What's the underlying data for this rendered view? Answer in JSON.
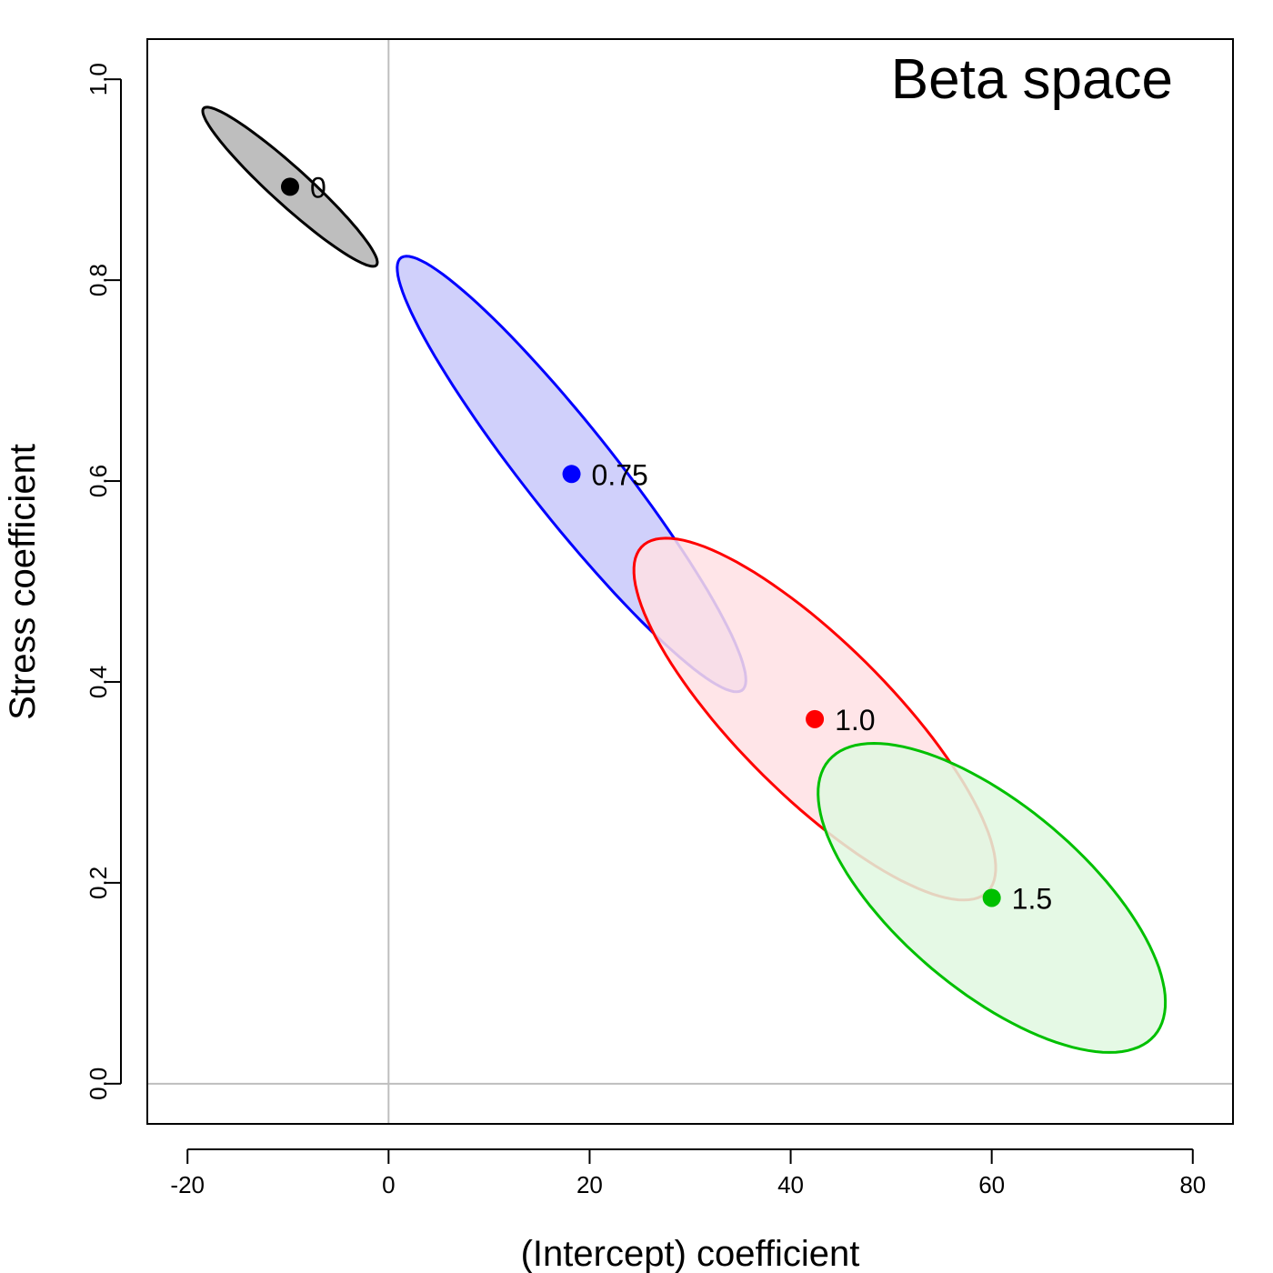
{
  "chart_data": {
    "type": "scatter",
    "title": "Beta space",
    "xlabel": "(Intercept) coefficient",
    "ylabel": "Stress coefficient",
    "xlim": [
      -24,
      84
    ],
    "ylim": [
      -0.04,
      1.04
    ],
    "xticks": [
      "-20",
      "0",
      "20",
      "40",
      "60",
      "80"
    ],
    "yticks": [
      "0.0",
      "0.2",
      "0.4",
      "0.6",
      "0.8",
      "1.0"
    ],
    "reference_lines": {
      "x": 0,
      "y": 0,
      "color": "#bebebe"
    },
    "grid": false,
    "series": [
      {
        "label": "0",
        "center": [
          -9.8,
          0.893
        ],
        "color": "#000000",
        "fill": "#b3b3b3",
        "ellipse": {
          "semi_major_x": 8.6,
          "semi_major_y": -0.078,
          "semi_minor_x": -1.2,
          "semi_minor_y": -0.014
        }
      },
      {
        "label": "0.75",
        "center": [
          18.2,
          0.607
        ],
        "color": "#0000ff",
        "fill": "#c8c8fa",
        "ellipse": {
          "semi_major_x": 17.1,
          "semi_major_y": -0.214,
          "semi_minor_x": -2.9,
          "semi_minor_y": -0.035
        }
      },
      {
        "label": "1.0",
        "center": [
          42.4,
          0.363
        ],
        "color": "#ff0000",
        "fill": "#ffe1e4",
        "ellipse": {
          "semi_major_x": 17.5,
          "semi_major_y": -0.168,
          "semi_minor_x": -4.2,
          "semi_minor_y": -0.065
        }
      },
      {
        "label": "1.5",
        "center": [
          60.0,
          0.185
        ],
        "color": "#00c000",
        "fill": "#e1f8e1",
        "ellipse": {
          "semi_major_x": 16.2,
          "semi_major_y": -0.137,
          "semi_minor_x": -6.0,
          "semi_minor_y": -0.07
        }
      }
    ]
  }
}
